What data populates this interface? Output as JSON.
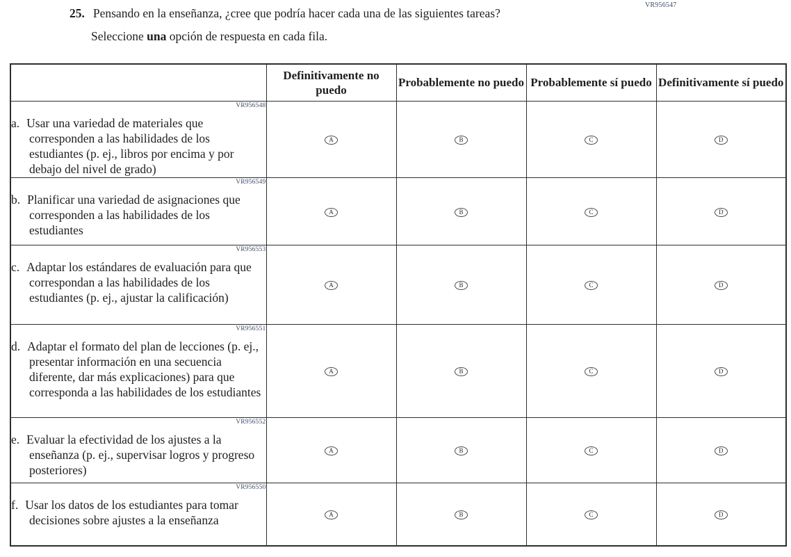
{
  "page": {
    "corner_code": "VR956547"
  },
  "question": {
    "number": "25.",
    "text": "Pensando en la enseñanza, ¿cree que podría hacer cada una de las siguientes tareas?",
    "instruction_pre": "Seleccione ",
    "instruction_bold": "una",
    "instruction_post": " opción de respuesta en cada fila."
  },
  "table": {
    "columns": [
      "Definitivamente no puedo",
      "Probablemente no puedo",
      "Probablemente sí puedo",
      "Definitivamente sí puedo"
    ],
    "options": [
      "A",
      "B",
      "C",
      "D"
    ],
    "rows": [
      {
        "code": "VR956548",
        "letter": "a.",
        "text": "Usar una variedad de materiales que corresponden a las habilidades de los estudiantes (p. ej., libros por encima y por debajo del nivel de grado)"
      },
      {
        "code": "VR956549",
        "letter": "b.",
        "text": "Planificar una variedad de asignaciones que corresponden a las habilidades de los estudiantes"
      },
      {
        "code": "VR956553",
        "letter": "c.",
        "text": "Adaptar los estándares de evaluación para que correspondan a las habilidades de los estudiantes (p. ej., ajustar la calificación)"
      },
      {
        "code": "VR956551",
        "letter": "d.",
        "text": "Adaptar el formato del plan de lecciones (p. ej., presentar información en una secuencia diferente, dar más explicaciones) para que corresponda a las habilidades de los estudiantes"
      },
      {
        "code": "VR956552",
        "letter": "e.",
        "text": "Evaluar la efectividad de los ajustes a la enseñanza (p. ej., supervisar logros y progreso posteriores)"
      },
      {
        "code": "VR956550",
        "letter": "f.",
        "text": "Usar los datos de los estudiantes para tomar decisiones sobre ajustes a la enseñanza"
      }
    ]
  },
  "colors": {
    "code_text": "#3e4d68",
    "body_text": "#1f1f1f",
    "table_border": "#2e2e2e"
  }
}
